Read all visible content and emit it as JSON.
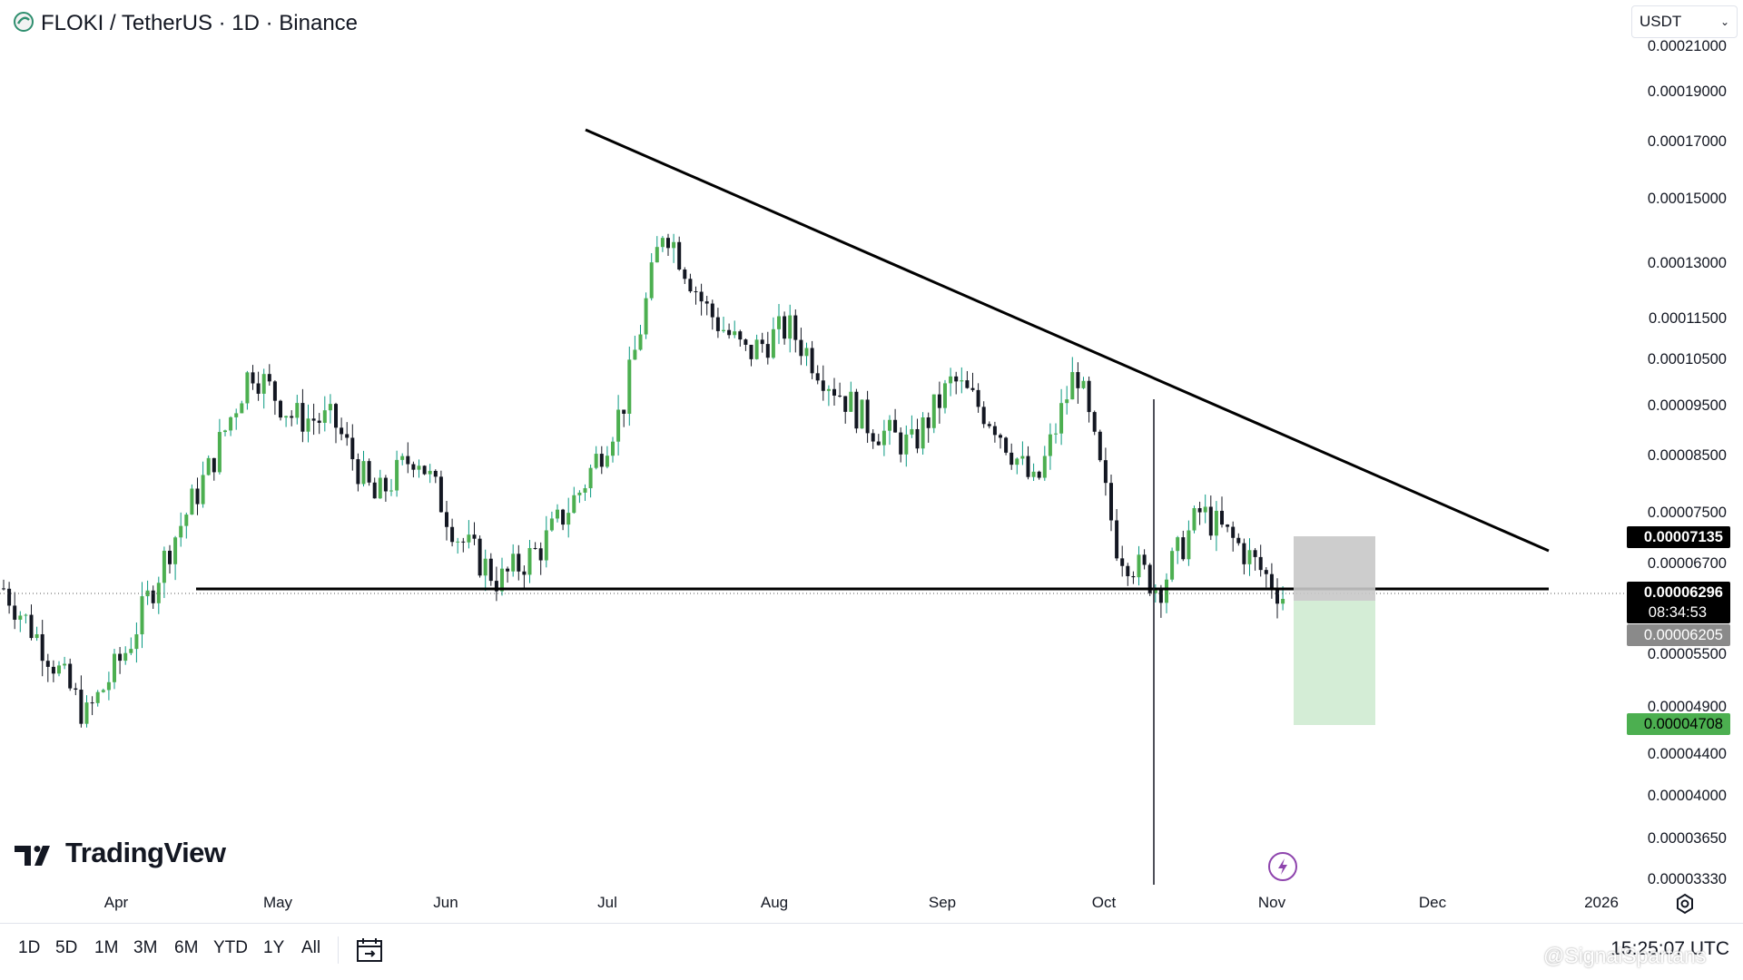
{
  "header": {
    "title": "FLOKI  /  TetherUS · 1D · Binance",
    "currency": "USDT"
  },
  "price_axis": {
    "labels": [
      "0.00021000",
      "0.00019000",
      "0.00017000",
      "0.00015000",
      "0.00013000",
      "0.00011500",
      "0.00010500",
      "0.00009500",
      "0.00008500",
      "0.00007500",
      "0.00006700",
      "0.00005500",
      "0.00004900",
      "0.00004400",
      "0.00004000",
      "0.00003650",
      "0.00003330"
    ]
  },
  "tags": {
    "target_upper": "0.00007135",
    "last_price": "0.00006296",
    "countdown": "08:34:53",
    "entry": "0.00006205",
    "target_lower": "0.00004708"
  },
  "time_axis": {
    "labels": [
      "Apr",
      "May",
      "Jun",
      "Jul",
      "Aug",
      "Sep",
      "Oct",
      "Nov",
      "Dec",
      "2026"
    ]
  },
  "ranges": [
    "1D",
    "5D",
    "1M",
    "3M",
    "6M",
    "YTD",
    "1Y",
    "All"
  ],
  "logo_text": "TradingView",
  "utc_time": "15:25:07 UTC",
  "watermark": "@SignalSpartans",
  "colors": {
    "up": "#089981",
    "up_body": "#4caf50",
    "down": "#131722",
    "stop_zone": "#c8c8c8",
    "target_zone": "#d4edd6",
    "target_tag": "#4caf50",
    "entry_tag": "#8a8a8a"
  },
  "chart_data": {
    "type": "candlestick",
    "symbol": "FLOKI / TetherUS",
    "interval": "1D",
    "exchange": "Binance",
    "y_scale": "log",
    "ylim": [
      3.33e-05,
      0.000215
    ],
    "x_axis": [
      "Apr",
      "May",
      "Jun",
      "Jul",
      "Aug",
      "Sep",
      "Oct",
      "Nov",
      "Dec",
      "2026"
    ],
    "approx_closes_weekly": [
      6.4e-05,
      5.6e-05,
      4.8e-05,
      5.6e-05,
      7e-05,
      8.4e-05,
      0.000105,
      9.4e-05,
      9.3e-05,
      7.8e-05,
      8.7e-05,
      7.2e-05,
      6.5e-05,
      7e-05,
      8e-05,
      9.6e-05,
      0.000145,
      0.00012,
      0.000108,
      0.000115,
      0.000102,
      9.2e-05,
      8.8e-05,
      0.000102,
      9.3e-05,
      8e-05,
      0.000105,
      7e-05,
      6.4e-05,
      7.6e-05,
      7e-05,
      6.3e-05
    ],
    "trendlines": [
      {
        "name": "descending resistance",
        "from": [
          0.000175
        ],
        "to": [
          7e-05
        ]
      },
      {
        "name": "horizontal support",
        "value": 6.3e-05
      }
    ],
    "position": {
      "type": "short",
      "entry": 6.205e-05,
      "stop": 7.135e-05,
      "target": 4.708e-05
    },
    "last_price": 6.296e-05
  }
}
